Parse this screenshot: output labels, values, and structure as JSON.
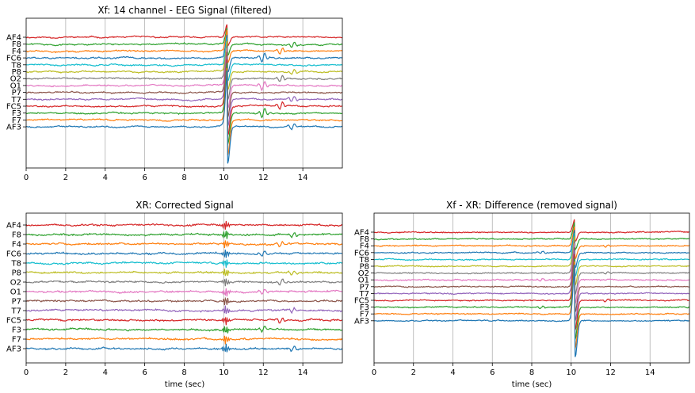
{
  "chart_data": [
    {
      "type": "line",
      "title": "Xf: 14 channel - EEG Signal (filtered)",
      "xlabel": "",
      "xlim": [
        0,
        16
      ],
      "xticks": [
        0,
        2,
        4,
        6,
        8,
        10,
        12,
        14
      ],
      "grid": "x-only",
      "channels": [
        "AF4",
        "F8",
        "F4",
        "FC6",
        "T8",
        "P8",
        "O2",
        "O1",
        "P7",
        "T7",
        "FC5",
        "F3",
        "F7",
        "AF3"
      ],
      "colors": [
        "#d62728",
        "#2ca02c",
        "#ff7f0e",
        "#1f77b4",
        "#17becf",
        "#bcbd22",
        "#7f7f7f",
        "#e377c2",
        "#8c564b",
        "#9467bd",
        "#d62728",
        "#2ca02c",
        "#ff7f0e",
        "#1f77b4"
      ],
      "events": [
        {
          "t": 10.2,
          "amp": 9
        },
        {
          "t": 12.0,
          "amp": 2
        },
        {
          "t": 12.9,
          "amp": 1.5
        },
        {
          "t": 13.5,
          "amp": 1.2
        }
      ]
    },
    {
      "type": "line",
      "title": "XR: Corrected Signal",
      "xlabel": "time (sec)",
      "xlim": [
        0,
        16
      ],
      "xticks": [
        0,
        2,
        4,
        6,
        8,
        10,
        12,
        14
      ],
      "grid": "x-only",
      "channels": [
        "AF4",
        "F8",
        "F4",
        "FC6",
        "T8",
        "P8",
        "O2",
        "O1",
        "P7",
        "T7",
        "FC5",
        "F3",
        "F7",
        "AF3"
      ],
      "colors": [
        "#d62728",
        "#2ca02c",
        "#ff7f0e",
        "#1f77b4",
        "#17becf",
        "#bcbd22",
        "#7f7f7f",
        "#e377c2",
        "#8c564b",
        "#9467bd",
        "#d62728",
        "#2ca02c",
        "#ff7f0e",
        "#1f77b4"
      ],
      "events": [
        {
          "t": 10.1,
          "amp": 1.5
        },
        {
          "t": 12.0,
          "amp": 1.2
        },
        {
          "t": 12.9,
          "amp": 1.2
        },
        {
          "t": 13.5,
          "amp": 1.0
        }
      ]
    },
    {
      "type": "line",
      "title": "Xf - XR: Difference (removed signal)",
      "xlabel": "time (sec)",
      "xlim": [
        0,
        16
      ],
      "xticks": [
        0,
        2,
        4,
        6,
        8,
        10,
        12,
        14
      ],
      "grid": "x-only",
      "channels": [
        "AF4",
        "F8",
        "F4",
        "FC6",
        "T8",
        "P8",
        "O2",
        "O1",
        "P7",
        "T7",
        "FC5",
        "F3",
        "F7",
        "AF3"
      ],
      "colors": [
        "#d62728",
        "#2ca02c",
        "#ff7f0e",
        "#1f77b4",
        "#17becf",
        "#bcbd22",
        "#7f7f7f",
        "#e377c2",
        "#8c564b",
        "#9467bd",
        "#d62728",
        "#2ca02c",
        "#ff7f0e",
        "#1f77b4"
      ],
      "events": [
        {
          "t": 10.2,
          "amp": 9
        },
        {
          "t": 8.5,
          "amp": 0.6
        },
        {
          "t": 11.8,
          "amp": 0.6
        }
      ]
    }
  ]
}
